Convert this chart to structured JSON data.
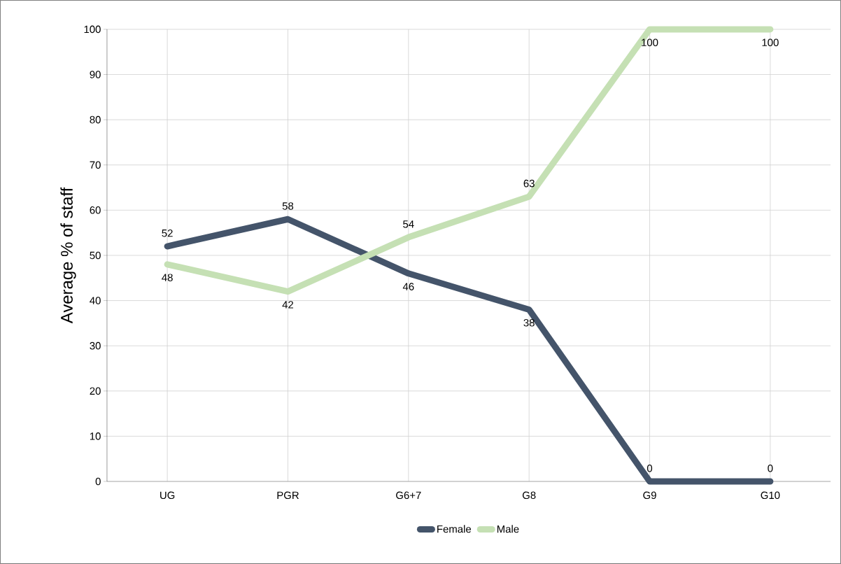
{
  "chart_data": {
    "type": "line",
    "ylabel": "Average % of staff",
    "categories": [
      "UG",
      "PGR",
      "G6+7",
      "G8",
      "G9",
      "G10"
    ],
    "series": [
      {
        "name": "Female",
        "color": "#44546a",
        "values": [
          52,
          58,
          46,
          38,
          0,
          0
        ]
      },
      {
        "name": "Male",
        "color": "#c5e0b4",
        "values": [
          48,
          42,
          54,
          63,
          100,
          100
        ]
      }
    ],
    "ylim": [
      0,
      100
    ],
    "yticks": [
      0,
      10,
      20,
      30,
      40,
      50,
      60,
      70,
      80,
      90,
      100
    ],
    "grid": true,
    "legend": "bottom",
    "data_labels": true,
    "marker": "none",
    "line_style": "solid"
  }
}
